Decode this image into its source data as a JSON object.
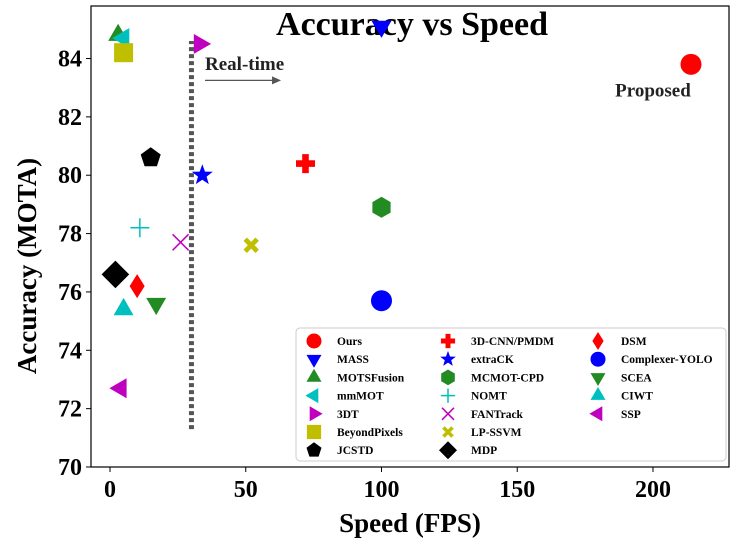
{
  "chart_data": {
    "type": "scatter",
    "title": "Accuracy vs Speed",
    "xlabel": "Speed (FPS)",
    "ylabel": "Accuracy (MOTA)",
    "xlim": [
      -7,
      228
    ],
    "ylim": [
      70,
      85.8
    ],
    "xticks": [
      0,
      50,
      100,
      150,
      200
    ],
    "yticks": [
      70,
      72,
      74,
      76,
      78,
      80,
      82,
      84
    ],
    "grid": false,
    "legend_position": "lower-right",
    "series": [
      {
        "name": "Ours",
        "marker": "circle",
        "color": "#ff0000",
        "x": 214,
        "y": 83.8
      },
      {
        "name": "MASS",
        "marker": "triangle-down",
        "color": "#0000ff",
        "x": 100,
        "y": 85.1
      },
      {
        "name": "MOTSFusion",
        "marker": "triangle-up",
        "color": "#228b22",
        "x": 3,
        "y": 84.8
      },
      {
        "name": "mmMOT",
        "marker": "triangle-left",
        "color": "#00bfbf",
        "x": 5,
        "y": 84.7
      },
      {
        "name": "3DT",
        "marker": "triangle-right",
        "color": "#bf00bf",
        "x": 33,
        "y": 84.5
      },
      {
        "name": "BeyondPixels",
        "marker": "square",
        "color": "#bfbf00",
        "x": 5,
        "y": 84.2
      },
      {
        "name": "JCSTD",
        "marker": "pentagon",
        "color": "#000000",
        "x": 15,
        "y": 80.6
      },
      {
        "name": "3D-CNN/PMDM",
        "marker": "plus",
        "color": "#ff0000",
        "x": 72,
        "y": 80.4
      },
      {
        "name": "extraCK",
        "marker": "star",
        "color": "#0000ff",
        "x": 34,
        "y": 80.0
      },
      {
        "name": "MCMOT-CPD",
        "marker": "hexagon",
        "color": "#228b22",
        "x": 100,
        "y": 78.9
      },
      {
        "name": "NOMT",
        "marker": "plus-thin",
        "color": "#00bfbf",
        "x": 11,
        "y": 78.2
      },
      {
        "name": "FANTrack",
        "marker": "x-thin",
        "color": "#bf00bf",
        "x": 26,
        "y": 77.7
      },
      {
        "name": "LP-SSVM",
        "marker": "x-thick",
        "color": "#bfbf00",
        "x": 52,
        "y": 77.6
      },
      {
        "name": "MDP",
        "marker": "diamond",
        "color": "#000000",
        "x": 2,
        "y": 76.6
      },
      {
        "name": "DSM",
        "marker": "thin-diamond",
        "color": "#ff0000",
        "x": 10,
        "y": 76.2
      },
      {
        "name": "Complexer-YOLO",
        "marker": "circle",
        "color": "#0000ff",
        "x": 100,
        "y": 75.7
      },
      {
        "name": "SCEA",
        "marker": "triangle-down",
        "color": "#228b22",
        "x": 17,
        "y": 75.6
      },
      {
        "name": "CIWT",
        "marker": "triangle-up",
        "color": "#00bfbf",
        "x": 5,
        "y": 75.4
      },
      {
        "name": "SSP",
        "marker": "triangle-left",
        "color": "#bf00bf",
        "x": 4,
        "y": 72.7
      }
    ],
    "threshold_line": {
      "x": 30,
      "y_range": [
        71.3,
        84.6
      ],
      "style": "dotted",
      "color": "#555555"
    },
    "annotations": [
      {
        "text": "Real-time",
        "x": 35,
        "y": 83.6,
        "arrow": {
          "from_x": 35,
          "to_x": 63,
          "y": 83.25
        }
      },
      {
        "text": "Proposed",
        "x": 200,
        "y": 82.7
      }
    ]
  }
}
